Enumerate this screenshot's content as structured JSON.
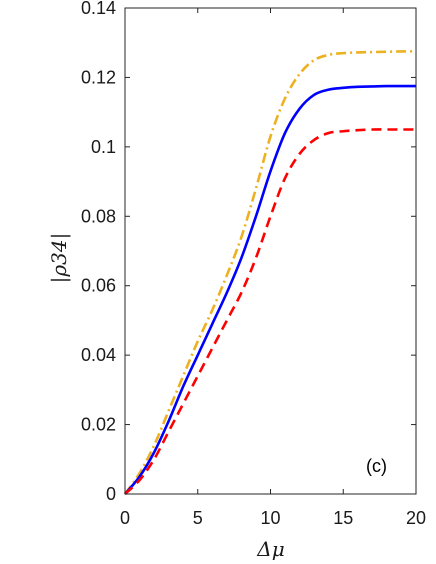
{
  "chart_data": {
    "type": "line",
    "title": "",
    "xlabel": "Δμ",
    "ylabel": "|ρ34|",
    "xlim": [
      0,
      20
    ],
    "ylim": [
      0,
      0.14
    ],
    "xticks": [
      0,
      5,
      10,
      15,
      20
    ],
    "yticks": [
      0,
      0.02,
      0.04,
      0.06,
      0.08,
      0.1,
      0.12,
      0.14
    ],
    "xtick_labels": [
      "0",
      "5",
      "10",
      "15",
      "20"
    ],
    "ytick_labels": [
      "0",
      "0.02",
      "0.04",
      "0.06",
      "0.08",
      "0.1",
      "0.12",
      "0.14"
    ],
    "grid": false,
    "annotation": "(c)",
    "series": [
      {
        "color": "#EDB120",
        "dash": "dashdot",
        "x": [
          0,
          1,
          2,
          3,
          4,
          5,
          6,
          7,
          8,
          9,
          10,
          11,
          12,
          13,
          14,
          15,
          16,
          17,
          18,
          19,
          20
        ],
        "y": [
          0,
          0.006,
          0.014,
          0.024,
          0.034,
          0.044,
          0.053,
          0.063,
          0.074,
          0.088,
          0.103,
          0.114,
          0.121,
          0.125,
          0.1265,
          0.127,
          0.1272,
          0.1273,
          0.1274,
          0.1275,
          0.1275
        ]
      },
      {
        "color": "#0000FF",
        "dash": "solid",
        "x": [
          0,
          1,
          2,
          3,
          4,
          5,
          6,
          7,
          8,
          9,
          10,
          11,
          12,
          13,
          14,
          15,
          16,
          17,
          18,
          19,
          20
        ],
        "y": [
          0,
          0.005,
          0.012,
          0.021,
          0.031,
          0.04,
          0.049,
          0.058,
          0.068,
          0.08,
          0.093,
          0.104,
          0.111,
          0.115,
          0.1165,
          0.117,
          0.1173,
          0.1174,
          0.1175,
          0.1175,
          0.1175
        ]
      },
      {
        "color": "#FF0000",
        "dash": "dashed",
        "x": [
          0,
          1,
          2,
          3,
          4,
          5,
          6,
          7,
          8,
          9,
          10,
          11,
          12,
          13,
          14,
          15,
          16,
          17,
          18,
          19,
          20
        ],
        "y": [
          0,
          0.004,
          0.01,
          0.018,
          0.026,
          0.034,
          0.042,
          0.05,
          0.058,
          0.068,
          0.08,
          0.091,
          0.098,
          0.102,
          0.104,
          0.1045,
          0.1048,
          0.105,
          0.105,
          0.105,
          0.105
        ]
      }
    ]
  }
}
